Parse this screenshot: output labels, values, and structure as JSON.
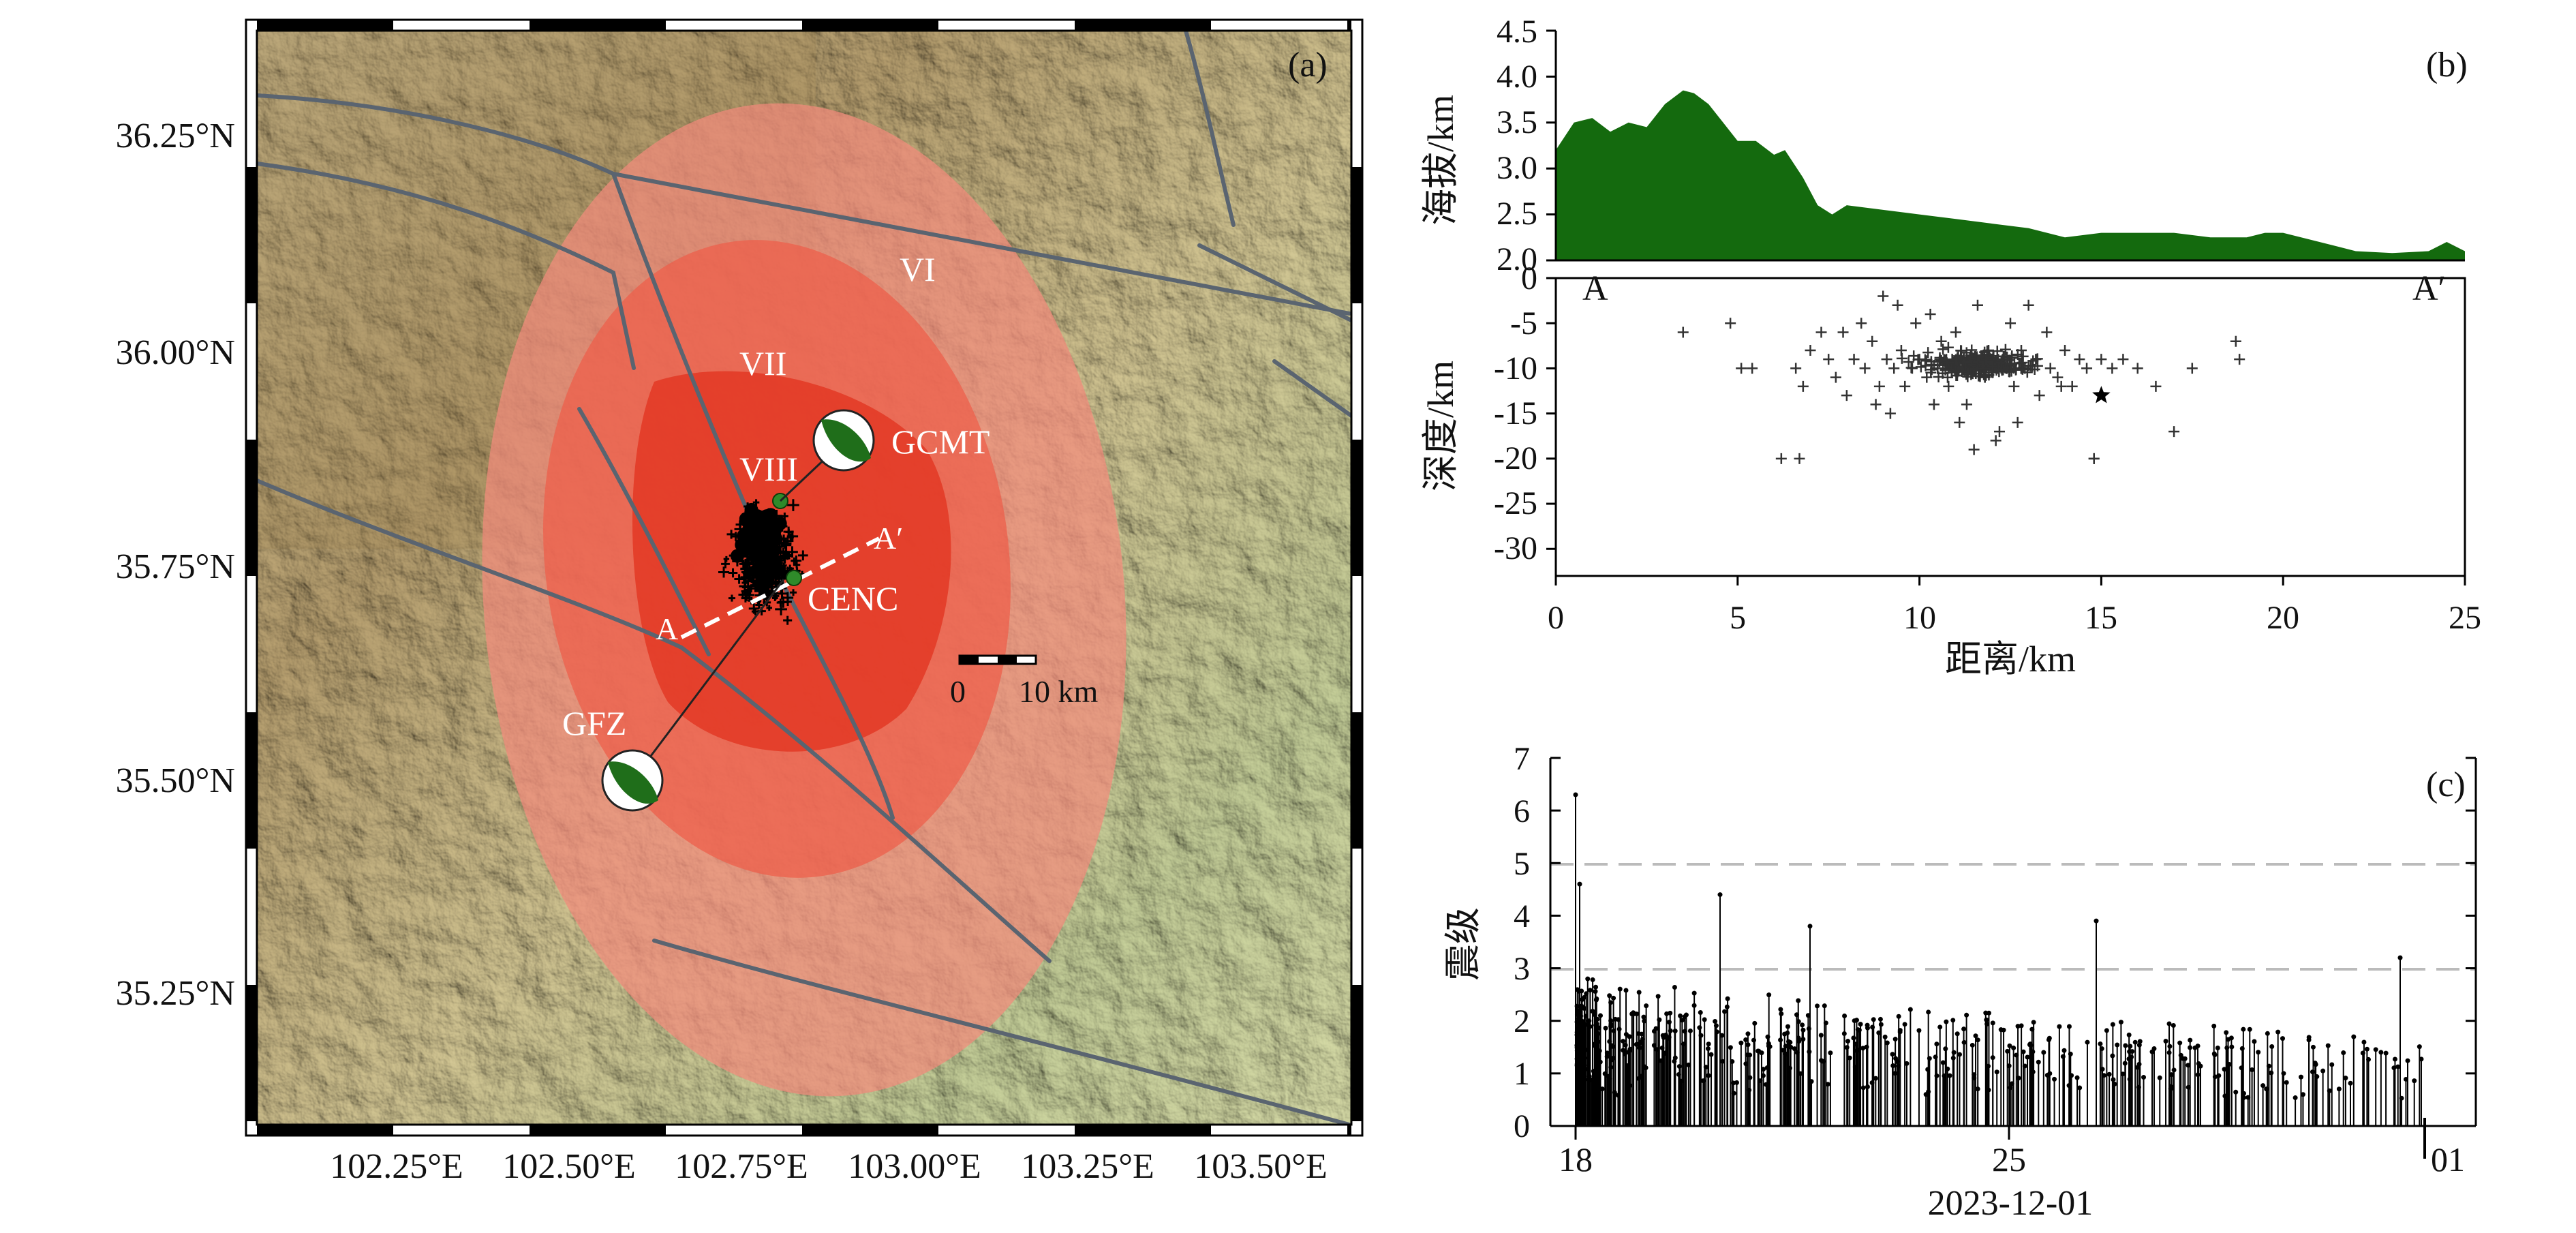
{
  "panel_a": {
    "label": "(a)",
    "lat_ticks": [
      "36.25°N",
      "36.00°N",
      "35.75°N",
      "35.50°N",
      "35.25°N"
    ],
    "lon_ticks": [
      "102.25°E",
      "102.50°E",
      "102.75°E",
      "103.00°E",
      "103.25°E",
      "103.50°E"
    ],
    "intensity_labels": [
      "VI",
      "VII",
      "VIII"
    ],
    "mechanisms": [
      "GCMT",
      "GFZ"
    ],
    "epicenter_label": "CENC",
    "profile_start": "A",
    "profile_end": "A′",
    "scale_bar": {
      "start": "0",
      "end": "10 km"
    },
    "colors": {
      "zone_vi": "#f0968a",
      "zone_vii": "#ec6a5a",
      "zone_viii": "#e03a28",
      "fault": "#5a6470",
      "beachball": "#1f6e1a"
    }
  },
  "panel_b": {
    "label": "(b)",
    "elev_ylabel": "海拔/km",
    "depth_ylabel": "深度/km",
    "xlabel": "距离/km",
    "profile_start": "A",
    "profile_end": "A′",
    "elev_ticks": [
      "4.5",
      "4.0",
      "3.5",
      "3.0",
      "2.5",
      "2.0"
    ],
    "depth_ticks": [
      "0",
      "-5",
      "-10",
      "-15",
      "-20",
      "-25",
      "-30"
    ],
    "x_ticks": [
      "0",
      "5",
      "10",
      "15",
      "20",
      "25"
    ]
  },
  "panel_c": {
    "label": "(c)",
    "ylabel": "震级",
    "y_ticks": [
      "0",
      "1",
      "2",
      "3",
      "4",
      "5",
      "6",
      "7"
    ],
    "x_ticks": [
      "18",
      "25",
      "01"
    ],
    "date_label": "2023-12-01"
  },
  "chart_data": [
    {
      "type": "area",
      "panel": "b-top",
      "ylabel": "海拔/km",
      "ylim": [
        2.0,
        4.5
      ],
      "xlim": [
        0,
        25
      ],
      "x": [
        0,
        0.5,
        1,
        1.5,
        2,
        2.5,
        3,
        3.5,
        3.8,
        4.2,
        4.6,
        5,
        5.5,
        6,
        6.3,
        6.8,
        7.2,
        7.6,
        8,
        9,
        10,
        11,
        12,
        13,
        14,
        15,
        16,
        17,
        18,
        19,
        19.5,
        20,
        21,
        22,
        23,
        24,
        24.5,
        25
      ],
      "y": [
        3.2,
        3.5,
        3.55,
        3.4,
        3.5,
        3.45,
        3.7,
        3.85,
        3.82,
        3.7,
        3.5,
        3.3,
        3.3,
        3.15,
        3.2,
        2.9,
        2.6,
        2.5,
        2.6,
        2.55,
        2.5,
        2.45,
        2.4,
        2.35,
        2.25,
        2.3,
        2.3,
        2.3,
        2.25,
        2.25,
        2.3,
        2.3,
        2.2,
        2.1,
        2.08,
        2.1,
        2.2,
        2.1
      ]
    },
    {
      "type": "scatter",
      "panel": "b-bottom",
      "xlabel": "距离/km",
      "ylabel": "深度/km",
      "xlim": [
        0,
        25
      ],
      "ylim": [
        -33,
        0
      ],
      "x": [
        3.5,
        4.8,
        5.1,
        5.4,
        6.2,
        6.6,
        6.8,
        7.0,
        7.3,
        7.5,
        7.7,
        7.9,
        8.0,
        8.2,
        8.4,
        8.5,
        8.7,
        8.9,
        9.0,
        9.1,
        9.3,
        9.4,
        9.5,
        9.6,
        9.8,
        9.9,
        10.0,
        10.2,
        10.3,
        10.5,
        10.6,
        10.8,
        10.9,
        11.0,
        11.2,
        11.3,
        11.5,
        11.6,
        11.8,
        11.9,
        12.0,
        12.2,
        12.3,
        12.5,
        12.6,
        12.8,
        12.9,
        13.0,
        13.2,
        13.3,
        13.5,
        13.6,
        13.8,
        14.0,
        14.2,
        14.4,
        14.6,
        14.8,
        15.0,
        15.3,
        15.6,
        16.0,
        16.5,
        17.0,
        17.5,
        18.7,
        18.8,
        6.7,
        14.8,
        11.5,
        9.2,
        12.7,
        10.4,
        13.9,
        8.8,
        11.1,
        12.1
      ],
      "y": [
        -6,
        -5,
        -10,
        -10,
        -20,
        -10,
        -12,
        -8,
        -6,
        -9,
        -11,
        -6,
        -13,
        -9,
        -5,
        -10,
        -7,
        -12,
        -2,
        -9,
        -10,
        -3,
        -8,
        -12,
        -10,
        -5,
        -9,
        -11,
        -4,
        -10,
        -7,
        -12,
        -9,
        -6,
        -10,
        -14,
        -9,
        -3,
        -11,
        -8,
        -10,
        -17,
        -9,
        -5,
        -12,
        -8,
        -10,
        -3,
        -9,
        -13,
        -6,
        -10,
        -11,
        -8,
        -12,
        -9,
        -10,
        -20,
        -9,
        -10,
        -9,
        -10,
        -12,
        -17,
        -10,
        -7,
        -9,
        -20,
        -20,
        -19,
        -15,
        -16,
        -14,
        -12,
        -14,
        -16,
        -18
      ],
      "mainshock": {
        "x": 15.0,
        "y": -13
      }
    },
    {
      "type": "bar",
      "panel": "c",
      "ylabel": "震级",
      "ylim": [
        0,
        7
      ],
      "reference_lines": [
        3,
        5
      ],
      "x_ticks": [
        "18",
        "25",
        "01"
      ],
      "mainshock_magnitude": 6.3,
      "largest_aftershocks": [
        4.6,
        4.4,
        3.9,
        3.8,
        3.2
      ]
    }
  ]
}
